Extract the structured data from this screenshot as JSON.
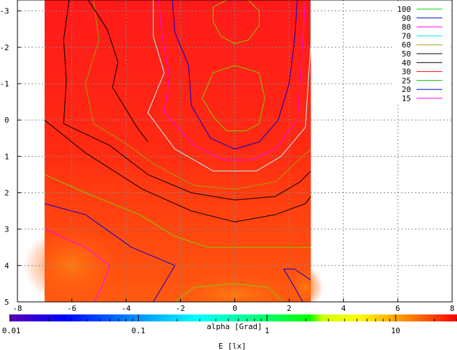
{
  "chart_data": {
    "type": "heatmap",
    "xlabel": "alpha [Grad]",
    "xlim": [
      -8,
      8
    ],
    "ylim": [
      -3.3,
      5
    ],
    "y_inverted": true,
    "x_ticks": [
      "-8",
      "-6",
      "-4",
      "-2",
      "0",
      "2",
      "4",
      "6",
      "8"
    ],
    "y_ticks": [
      "-3",
      "-2",
      "-1",
      "0",
      "1",
      "2",
      "3",
      "4",
      "5"
    ],
    "grid": true,
    "data_extent_x": [
      -7,
      2.8
    ],
    "colorbar": {
      "label": "E [lx]",
      "scale": "log",
      "range": [
        0.01,
        30
      ],
      "tick_labels": [
        "0.01",
        "0.1",
        "1",
        "10"
      ]
    },
    "legend_position": "top-right",
    "contour_levels": [
      {
        "level": "100",
        "color": "#00cc00"
      },
      {
        "level": "90",
        "color": "#0000cc"
      },
      {
        "level": "80",
        "color": "#ff00ff"
      },
      {
        "level": "70",
        "color": "#00e5e5"
      },
      {
        "level": "60",
        "color": "#a0a000"
      },
      {
        "level": "50",
        "color": "#000000"
      },
      {
        "level": "40",
        "color": "#000000"
      },
      {
        "level": "30",
        "color": "#ff0000"
      },
      {
        "level": "25",
        "color": "#00cc00"
      },
      {
        "level": "20",
        "color": "#0000cc"
      },
      {
        "level": "15",
        "color": "#ff00ff"
      }
    ],
    "contours": [
      {
        "level": "100",
        "color": "#7fcc00",
        "points": [
          [
            -0.8,
            -3.1
          ],
          [
            -0.3,
            -3.3
          ],
          [
            0.5,
            -3.3
          ],
          [
            0.9,
            -3.0
          ],
          [
            0.9,
            -2.6
          ],
          [
            0.5,
            -2.2
          ],
          [
            0,
            -2.1
          ],
          [
            -0.5,
            -2.3
          ],
          [
            -0.8,
            -2.7
          ]
        ],
        "closed": true
      },
      {
        "level": "100",
        "color": "#7fcc00",
        "points": [
          [
            -1.2,
            -0.6
          ],
          [
            -0.8,
            -1.3
          ],
          [
            0,
            -1.5
          ],
          [
            0.9,
            -1.3
          ],
          [
            1.1,
            -0.6
          ],
          [
            0.9,
            0.1
          ],
          [
            0.4,
            0.3
          ],
          [
            -0.3,
            0.3
          ],
          [
            -0.8,
            -0.1
          ]
        ],
        "closed": true
      },
      {
        "level": "90",
        "color": "#0000cc",
        "points": [
          [
            -2.3,
            -3.3
          ],
          [
            -2.2,
            -2.4
          ],
          [
            -1.7,
            -1.5
          ],
          [
            -1.6,
            -0.4
          ],
          [
            -0.9,
            0.5
          ],
          [
            0,
            0.8
          ],
          [
            0.9,
            0.6
          ],
          [
            1.6,
            0
          ],
          [
            2.0,
            -1.0
          ],
          [
            2.2,
            -2.2
          ],
          [
            2.3,
            -3.3
          ]
        ],
        "closed": false
      },
      {
        "level": "80",
        "color": "#ff00ff",
        "points": [
          [
            -2.8,
            -3.3
          ],
          [
            -2.7,
            -2.4
          ],
          [
            -2.4,
            -1.2
          ],
          [
            -2.6,
            -0.2
          ],
          [
            -1.5,
            0.7
          ],
          [
            -0.4,
            1.1
          ],
          [
            0.6,
            1.1
          ],
          [
            1.5,
            0.8
          ],
          [
            2.3,
            0
          ],
          [
            2.4,
            -1.0
          ],
          [
            2.5,
            -2.2
          ],
          [
            2.6,
            -3.3
          ]
        ],
        "closed": false
      },
      {
        "level": "70",
        "color": "#aaffff",
        "points": [
          [
            -3.0,
            -3.3
          ],
          [
            -3.0,
            -2.3
          ],
          [
            -2.6,
            -1.3
          ],
          [
            -3.2,
            -0.2
          ],
          [
            -2.2,
            0.8
          ],
          [
            -0.8,
            1.4
          ],
          [
            0.8,
            1.4
          ],
          [
            1.7,
            1.0
          ],
          [
            2.6,
            0.2
          ],
          [
            2.7,
            -1.0
          ],
          [
            2.8,
            -2.1
          ],
          [
            2.8,
            -3.3
          ]
        ],
        "closed": false
      },
      {
        "level": "60",
        "color": "#a0a000",
        "points": [
          [
            -5.2,
            -3.3
          ],
          [
            -5.0,
            -2.2
          ],
          [
            -5.5,
            -1.0
          ],
          [
            -5.2,
            0.1
          ],
          [
            -4.1,
            0.6
          ],
          [
            -3.0,
            1.2
          ],
          [
            -1.5,
            1.8
          ],
          [
            0,
            1.9
          ],
          [
            1.5,
            1.7
          ],
          [
            2.2,
            1.2
          ],
          [
            2.8,
            0.8
          ]
        ],
        "closed": false
      },
      {
        "level": "50",
        "color": "#000000",
        "points": [
          [
            -6.1,
            -3.3
          ],
          [
            -6.3,
            -2.2
          ],
          [
            -6.2,
            -1.1
          ],
          [
            -6.3,
            0.1
          ],
          [
            -4.6,
            0.7
          ],
          [
            -3.2,
            1.5
          ],
          [
            -1.6,
            2.0
          ],
          [
            0,
            2.2
          ],
          [
            1.5,
            2.1
          ],
          [
            2.4,
            1.7
          ],
          [
            2.8,
            1.4
          ]
        ],
        "closed": false
      },
      {
        "level": "40",
        "color": "#000000",
        "points": [
          [
            -5.4,
            -3.3
          ],
          [
            -4.7,
            -2.5
          ],
          [
            -4.3,
            -1.6
          ],
          [
            -4.5,
            -0.9
          ],
          [
            -3.6,
            0.2
          ],
          [
            -3.2,
            0.6
          ]
        ],
        "closed": false
      },
      {
        "level": "40",
        "color": "#000000",
        "points": [
          [
            -7.0,
            0.0
          ],
          [
            -5.5,
            0.9
          ],
          [
            -3.4,
            1.9
          ],
          [
            -1.6,
            2.5
          ],
          [
            0,
            2.8
          ],
          [
            1.5,
            2.6
          ],
          [
            2.6,
            2.3
          ],
          [
            2.8,
            2.1
          ]
        ],
        "closed": false
      },
      {
        "level": "25",
        "color": "#7fcc00",
        "points": [
          [
            -7.0,
            1.5
          ],
          [
            -5.5,
            2.0
          ],
          [
            -3.5,
            2.6
          ],
          [
            -2.2,
            3.2
          ],
          [
            -1.0,
            3.5
          ],
          [
            0,
            3.5
          ],
          [
            1.5,
            3.5
          ],
          [
            2.8,
            3.5
          ]
        ],
        "closed": false
      },
      {
        "level": "20",
        "color": "#0000cc",
        "points": [
          [
            -7.0,
            2.3
          ],
          [
            -5.5,
            2.6
          ],
          [
            -3.8,
            3.5
          ],
          [
            -2.2,
            4.0
          ],
          [
            -3.0,
            5.0
          ]
        ],
        "closed": false
      },
      {
        "level": "20",
        "color": "#0000cc",
        "points": [
          [
            2.8,
            4.4
          ],
          [
            2.2,
            4.1
          ],
          [
            1.8,
            4.1
          ],
          [
            2.2,
            4.6
          ],
          [
            2.5,
            5.0
          ]
        ],
        "closed": false
      },
      {
        "level": "15",
        "color": "#ff00ff",
        "points": [
          [
            -7.0,
            3.0
          ],
          [
            -5.5,
            3.5
          ],
          [
            -4.6,
            4.0
          ],
          [
            -4.9,
            4.6
          ],
          [
            -5.2,
            5.0
          ]
        ],
        "closed": false
      },
      {
        "level": "100",
        "color": "#7fcc00",
        "points": [
          [
            -2.2,
            5.0
          ],
          [
            -1.5,
            4.6
          ],
          [
            0,
            4.5
          ],
          [
            1.2,
            4.6
          ],
          [
            1.8,
            5.0
          ]
        ],
        "closed": false
      }
    ]
  }
}
